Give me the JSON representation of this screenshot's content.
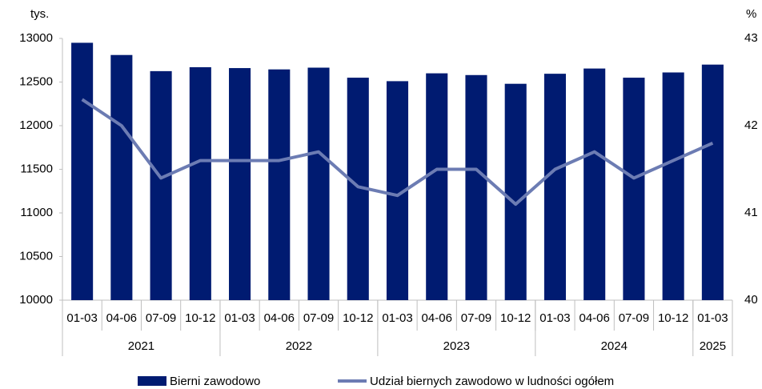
{
  "chart_data": {
    "type": "bar_line",
    "y_label": "tys.",
    "y2_label": "%",
    "categories": [
      "01-03",
      "04-06",
      "07-09",
      "10-12",
      "01-03",
      "04-06",
      "07-09",
      "10-12",
      "01-03",
      "04-06",
      "07-09",
      "10-12",
      "01-03",
      "04-06",
      "07-09",
      "10-12",
      "01-03"
    ],
    "groups": [
      {
        "label": "2021",
        "count": 4
      },
      {
        "label": "2022",
        "count": 4
      },
      {
        "label": "2023",
        "count": 4
      },
      {
        "label": "2024",
        "count": 4
      },
      {
        "label": "2025",
        "count": 1
      }
    ],
    "series": [
      {
        "name": "Bierni zawodowo",
        "type": "bar",
        "color": "#001b71",
        "values": [
          12950,
          12810,
          12625,
          12670,
          12660,
          12645,
          12665,
          12550,
          12510,
          12600,
          12580,
          12480,
          12595,
          12655,
          12550,
          12610,
          12700
        ]
      },
      {
        "name": "Udział biernych zawodowo w ludności ogółem",
        "type": "line",
        "axis": "y2",
        "color": "#6c7cb3",
        "values": [
          42.3,
          42.0,
          41.4,
          41.6,
          41.6,
          41.6,
          41.7,
          41.3,
          41.2,
          41.5,
          41.5,
          41.1,
          41.5,
          41.7,
          41.4,
          41.6,
          41.8
        ]
      }
    ],
    "ylim": [
      10000,
      13000
    ],
    "yticks": [
      10000,
      10500,
      11000,
      11500,
      12000,
      12500,
      13000
    ],
    "y2lim": [
      40,
      43
    ],
    "y2ticks": [
      40,
      41,
      42,
      43
    ]
  }
}
